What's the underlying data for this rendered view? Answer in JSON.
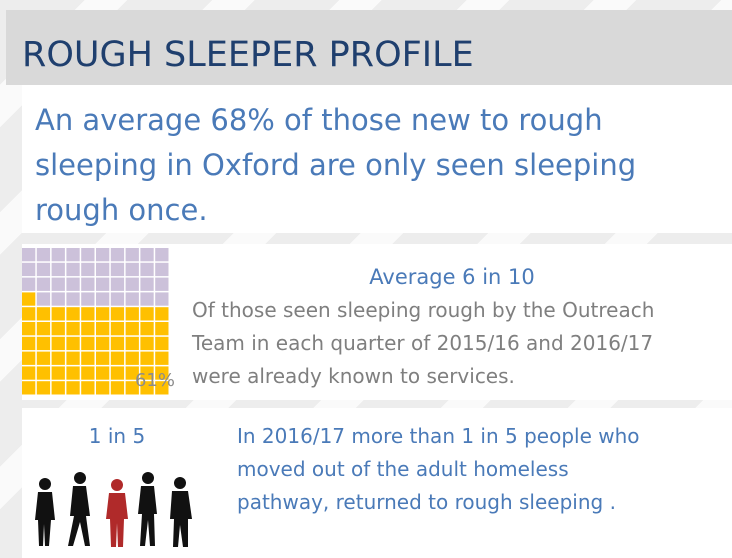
{
  "header": {
    "title": "ROUGH SLEEPER PROFILE"
  },
  "intro": {
    "lines": [
      "An average 68% of those new to rough",
      "sleeping in Oxford are only seen sleeping",
      "rough once."
    ]
  },
  "known": {
    "heading": "Average 6 in 10",
    "lines": [
      "Of those seen sleeping rough by the Outreach",
      "Team in each quarter of 2015/16 and 2016/17",
      "were already known to services."
    ],
    "waffle": {
      "value": 61,
      "label": "61%"
    }
  },
  "returned": {
    "heading": "1 in 5",
    "lines": [
      "In 2016/17 more than 1 in 5 people who",
      "moved out of the adult homeless",
      "pathway, returned to rough sleeping ."
    ]
  }
}
